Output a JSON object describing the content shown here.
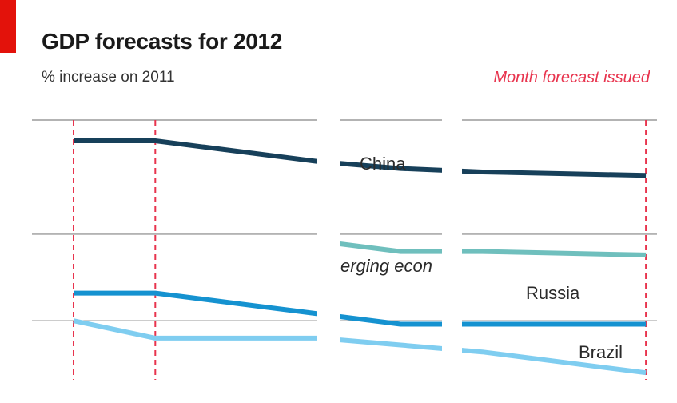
{
  "header": {
    "title": "GDP forecasts for 2012",
    "subtitle": "% increase on 2011",
    "legend_note": "Month forecast issued"
  },
  "colors": {
    "brand_red": "#e3120b",
    "forecast_marker": "#e8344e",
    "china": "#17405a",
    "emerging": "#6fbfbd",
    "russia": "#1592d0",
    "brazil": "#7fcdf0",
    "gridline": "#9a9a9a"
  },
  "chart_data": {
    "type": "line",
    "title": "GDP forecasts for 2012",
    "subtitle": "% increase on 2011",
    "xlabel": "",
    "ylabel": "",
    "x": [
      1,
      2,
      3,
      4,
      5,
      6,
      7,
      8
    ],
    "x_markers": [
      1,
      2,
      8
    ],
    "series": [
      {
        "name": "China",
        "color": "#17405a",
        "values": [
          8.7,
          8.7,
          8.4,
          8.1,
          7.9,
          7.8,
          7.75,
          7.7
        ]
      },
      {
        "name": "Emerging economies",
        "label_shown": "erging econ",
        "color": "#6fbfbd",
        "values": [
          null,
          null,
          null,
          5.8,
          5.5,
          5.5,
          5.45,
          5.4
        ]
      },
      {
        "name": "Russia",
        "color": "#1592d0",
        "values": [
          4.3,
          4.3,
          4.0,
          3.7,
          3.4,
          3.4,
          3.4,
          3.4
        ]
      },
      {
        "name": "Brazil",
        "color": "#7fcdf0",
        "values": [
          3.5,
          3.0,
          3.0,
          3.0,
          2.8,
          2.6,
          2.3,
          2.0
        ]
      }
    ],
    "gridlines": [
      9.3,
      6.0,
      3.5
    ],
    "grid": true,
    "note": "Month forecast issued"
  }
}
